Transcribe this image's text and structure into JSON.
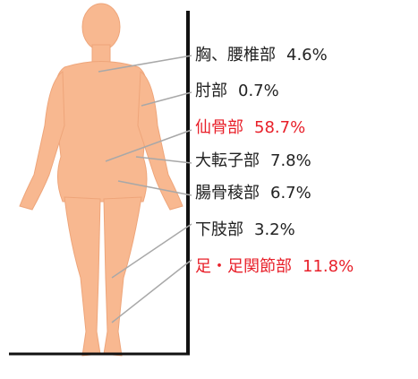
{
  "labels": [
    {
      "text": "胸、腰椎部",
      "value_label": "4.6%",
      "color": "#222222"
    },
    {
      "text": "肘部",
      "value_label": "0.7%",
      "color": "#222222"
    },
    {
      "text": "仙骨部",
      "value_label": "58.7%",
      "color": "#e8202a"
    },
    {
      "text": "大転子部",
      "value_label": "7.8%",
      "color": "#222222"
    },
    {
      "text": "腸骨稜部",
      "value_label": "6.7%",
      "color": "#222222"
    },
    {
      "text": "下肢部",
      "value_label": "3.2%",
      "color": "#222222"
    },
    {
      "text": "足・足関節部",
      "value_label": "11.8%",
      "color": "#e8202a"
    }
  ]
}
